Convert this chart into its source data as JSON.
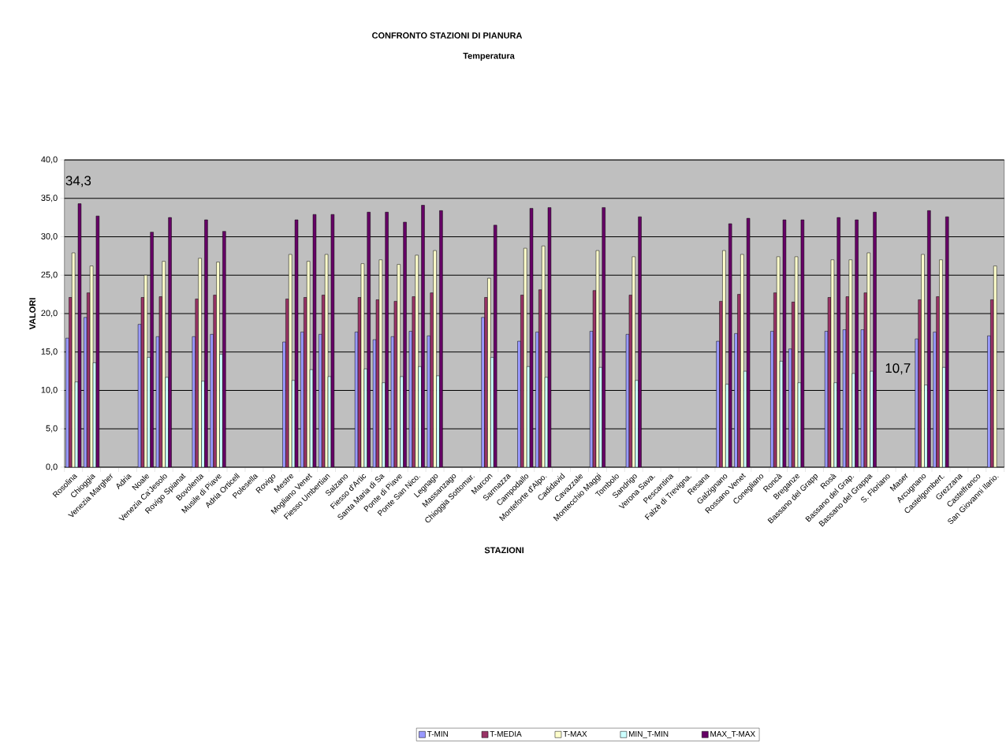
{
  "chart_data": {
    "type": "bar",
    "title": "CONFRONTO STAZIONI DI PIANURA",
    "subtitle": "Temperatura",
    "xlabel": "STAZIONI",
    "ylabel": "VALORI",
    "categories": [
      "Rosolina",
      "Chioggia",
      "Venezia Margher",
      "Adria",
      "Noale",
      "Venezia Ca'Jesolo",
      "Rovigo Spianat",
      "Bovolenta",
      "Musile di Piave",
      "Adria Orticell",
      "Polesella",
      "Rovigo",
      "Mestre",
      "Mogliano Venet",
      "Fiesso Umbertian",
      "Salzano",
      "Fiesso d'Artic",
      "Santa Maria di Sa",
      "Ponte di Piave",
      "Ponte San Nico.",
      "Legnago",
      "Massanzago",
      "Chioggia Sottomar.",
      "Marcon",
      "Sarmazza",
      "Campodallo",
      "Monteforte d'Alpo.",
      "Cadidavid",
      "Cavazzale",
      "Montecchio Maggi",
      "Tombolo",
      "Sandrigo",
      "Verona Sava.",
      "Pescantina",
      "Falzè di Trevigna.",
      "Resana",
      "Galzignano",
      "Rossano Venet",
      "Conegliano",
      "Roncà",
      "Breganze",
      "Bassano del Grapp",
      "Rosà",
      "Bassano del Grap.",
      "Bassano del Grappa",
      "S. Floriano",
      "Maser",
      "Arcugnano",
      "Castelgombert.",
      "Grezzana",
      "Castelfranco",
      "San Giovanni Ilario."
    ],
    "series": [
      {
        "name": "T-MIN",
        "color": "#9999ff",
        "values": [
          16.8,
          19.5,
          null,
          null,
          18.6,
          17.0,
          null,
          17.0,
          17.3,
          null,
          null,
          null,
          16.3,
          17.6,
          17.3,
          null,
          17.6,
          16.6,
          17.0,
          17.7,
          17.1,
          null,
          null,
          19.5,
          null,
          16.4,
          17.6,
          null,
          null,
          17.7,
          null,
          17.3,
          null,
          null,
          null,
          null,
          16.4,
          17.4,
          null,
          17.7,
          15.4,
          null,
          17.7,
          17.9,
          17.9,
          null,
          null,
          16.7,
          17.6,
          null,
          null,
          17.1
        ]
      },
      {
        "name": "T-MEDIA",
        "color": "#993366",
        "values": [
          22.1,
          22.7,
          null,
          null,
          22.1,
          22.2,
          null,
          21.9,
          22.4,
          null,
          null,
          null,
          21.9,
          22.1,
          22.4,
          null,
          22.1,
          21.8,
          21.6,
          22.2,
          22.7,
          null,
          null,
          22.1,
          null,
          22.4,
          23.1,
          null,
          null,
          23.0,
          null,
          22.4,
          null,
          null,
          null,
          null,
          21.6,
          22.5,
          null,
          22.7,
          21.5,
          null,
          22.1,
          22.2,
          22.7,
          null,
          null,
          21.8,
          22.2,
          null,
          null,
          21.8
        ]
      },
      {
        "name": "T-MAX",
        "color": "#ffffcc",
        "values": [
          27.9,
          26.2,
          null,
          null,
          25.0,
          26.8,
          null,
          27.2,
          26.7,
          null,
          null,
          null,
          27.7,
          26.8,
          27.7,
          null,
          26.5,
          27.0,
          26.4,
          27.6,
          28.2,
          null,
          null,
          24.6,
          null,
          28.5,
          28.8,
          null,
          null,
          28.2,
          null,
          27.4,
          null,
          null,
          null,
          null,
          28.2,
          27.7,
          null,
          27.4,
          27.4,
          null,
          27.0,
          27.0,
          27.9,
          null,
          null,
          27.7,
          27.0,
          null,
          null,
          26.2
        ]
      },
      {
        "name": "MIN_T-MIN",
        "color": "#ccffff",
        "values": [
          11.1,
          13.6,
          null,
          null,
          14.3,
          11.7,
          null,
          11.2,
          14.7,
          null,
          null,
          null,
          11.3,
          12.7,
          11.8,
          null,
          12.8,
          11.0,
          11.8,
          13.1,
          11.9,
          null,
          null,
          14.3,
          null,
          13.1,
          11.7,
          null,
          null,
          13.0,
          null,
          11.3,
          null,
          null,
          null,
          null,
          10.8,
          12.5,
          null,
          13.8,
          11.0,
          null,
          11.0,
          12.2,
          12.5,
          null,
          null,
          10.7,
          13.0,
          null,
          null,
          null
        ]
      },
      {
        "name": "MAX_T-MAX",
        "color": "#660066",
        "values": [
          34.3,
          32.7,
          null,
          null,
          30.6,
          32.5,
          null,
          32.2,
          30.7,
          null,
          null,
          null,
          32.2,
          32.9,
          32.9,
          null,
          33.2,
          33.2,
          31.9,
          34.1,
          33.4,
          null,
          null,
          31.5,
          null,
          33.7,
          33.8,
          null,
          null,
          33.8,
          null,
          32.6,
          null,
          null,
          null,
          null,
          31.7,
          32.4,
          null,
          32.2,
          32.2,
          null,
          32.5,
          32.2,
          33.2,
          null,
          null,
          33.4,
          32.6,
          null,
          null,
          null
        ]
      }
    ],
    "ylim": [
      0,
      40
    ],
    "yticks": [
      {
        "value": 0,
        "label": "0,0"
      },
      {
        "value": 5,
        "label": "5,0"
      },
      {
        "value": 10,
        "label": "10,0"
      },
      {
        "value": 15,
        "label": "15,0"
      },
      {
        "value": 20,
        "label": "20,0"
      },
      {
        "value": 25,
        "label": "25,0"
      },
      {
        "value": 30,
        "label": "30,0"
      },
      {
        "value": 35,
        "label": "35,0"
      },
      {
        "value": 40,
        "label": "40,0"
      }
    ],
    "grid": "y",
    "legend": "bottom",
    "annotations": [
      "34,3",
      "10,7"
    ]
  }
}
